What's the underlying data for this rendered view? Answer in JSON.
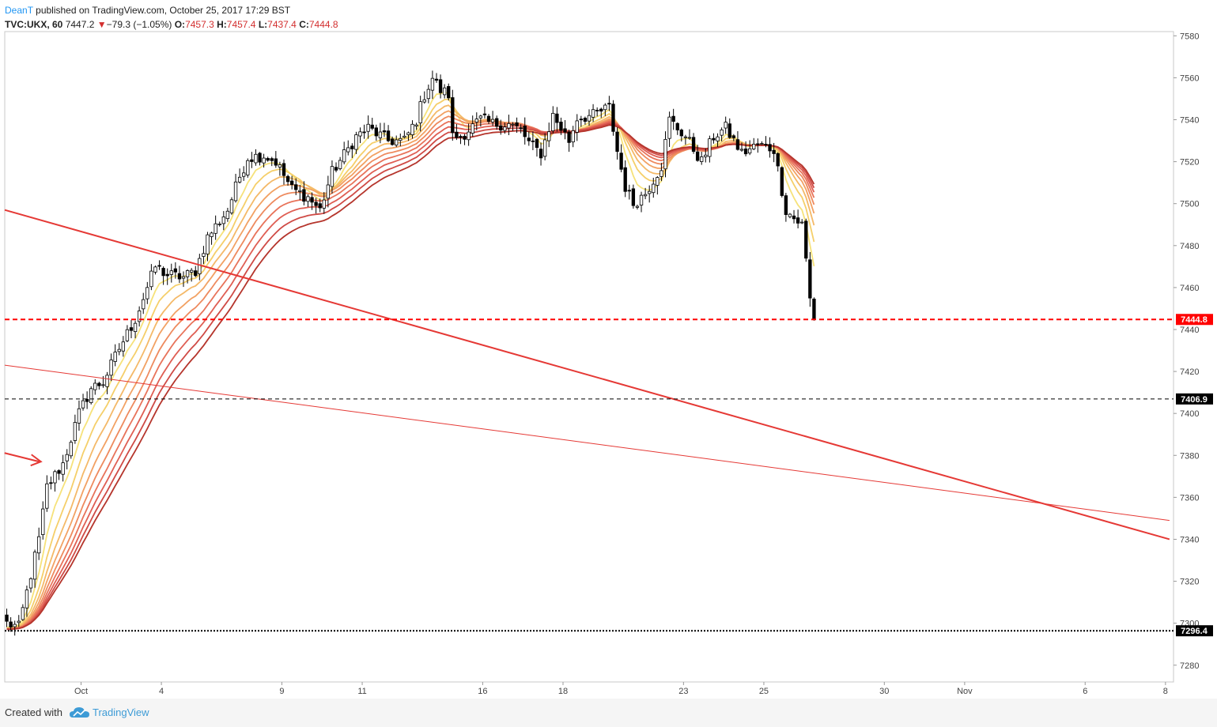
{
  "header": {
    "author": "DeanT",
    "published_text": " published on TradingView.com, October 25, 2017 17:29 BST",
    "symbol": "TVC:UKX, 60",
    "last": "7447.2",
    "change_arrow": "▼",
    "change": "−79.3 (−1.05%)",
    "o_label": "O:",
    "o_val": "7457.3",
    "h_label": "H:",
    "h_val": "7457.4",
    "l_label": "L:",
    "l_val": "7437.4",
    "c_label": "C:",
    "c_val": "7444.8"
  },
  "footer": {
    "created_with": "Created with",
    "brand": "TradingView"
  },
  "chart_data": {
    "type": "candlestick",
    "instrument": "TVC:UKX",
    "interval": "60",
    "y_axis": {
      "ticks": [
        7280,
        7300,
        7320,
        7340,
        7360,
        7380,
        7400,
        7420,
        7440,
        7460,
        7480,
        7500,
        7520,
        7540,
        7560,
        7580
      ],
      "ylim": [
        7272,
        7582
      ]
    },
    "x_axis": {
      "ticks": [
        "Oct",
        "4",
        "9",
        "11",
        "16",
        "18",
        "23",
        "25",
        "30",
        "Nov",
        "6",
        "8"
      ],
      "tick_bars": [
        19,
        39,
        69,
        89,
        119,
        139,
        169,
        189,
        219,
        239,
        269,
        289
      ],
      "bar_range": [
        0,
        291
      ]
    },
    "price_labels": [
      {
        "value": 7444.8,
        "text": "7444.8",
        "style": "red-dashed",
        "color": "#ff0000"
      },
      {
        "value": 7406.9,
        "text": "7406.9",
        "style": "black-dashed",
        "color": "#000000"
      },
      {
        "value": 7296.4,
        "text": "7296.4",
        "style": "black-dotted",
        "color": "#000000"
      }
    ],
    "trendlines": [
      {
        "from": [
          0,
          7497
        ],
        "to": [
          290,
          7340
        ],
        "color": "#e53935",
        "width": 2
      },
      {
        "from": [
          0,
          7423
        ],
        "to": [
          290,
          7349
        ],
        "color": "#e53935",
        "width": 1
      }
    ],
    "arrow_annotation": {
      "bar": 9,
      "value": 7377,
      "color": "#e53935"
    },
    "ma_ribbon": {
      "colors": [
        "#f6e27a",
        "#f5cf6a",
        "#f4b968",
        "#f2a163",
        "#ee8a5e",
        "#e8735a",
        "#df5e53",
        "#cf4a45",
        "#b5352c"
      ]
    },
    "candle_keypoints": [
      [
        0,
        7300
      ],
      [
        3,
        7298
      ],
      [
        8,
        7340
      ],
      [
        10,
        7365
      ],
      [
        14,
        7376
      ],
      [
        18,
        7400
      ],
      [
        21,
        7412
      ],
      [
        24,
        7415
      ],
      [
        28,
        7431
      ],
      [
        32,
        7445
      ],
      [
        35,
        7460
      ],
      [
        37,
        7470
      ],
      [
        40,
        7466
      ],
      [
        44,
        7465
      ],
      [
        47,
        7468
      ],
      [
        50,
        7484
      ],
      [
        55,
        7497
      ],
      [
        58,
        7513
      ],
      [
        60,
        7522
      ],
      [
        64,
        7523
      ],
      [
        67,
        7520
      ],
      [
        71,
        7507
      ],
      [
        75,
        7503
      ],
      [
        78,
        7497
      ],
      [
        81,
        7515
      ],
      [
        85,
        7526
      ],
      [
        87,
        7532
      ],
      [
        90,
        7536
      ],
      [
        95,
        7530
      ],
      [
        99,
        7530
      ],
      [
        102,
        7540
      ],
      [
        104,
        7552
      ],
      [
        106,
        7560
      ],
      [
        108,
        7554
      ],
      [
        110,
        7552
      ],
      [
        111,
        7532
      ],
      [
        113,
        7532
      ],
      [
        118,
        7540
      ],
      [
        121,
        7538
      ],
      [
        125,
        7538
      ],
      [
        128,
        7535
      ],
      [
        130,
        7529
      ],
      [
        133,
        7524
      ],
      [
        136,
        7542
      ],
      [
        140,
        7530
      ],
      [
        142,
        7541
      ],
      [
        146,
        7542
      ],
      [
        150,
        7546
      ],
      [
        152,
        7525
      ],
      [
        154,
        7508
      ],
      [
        156,
        7500
      ],
      [
        159,
        7505
      ],
      [
        163,
        7518
      ],
      [
        165,
        7540
      ],
      [
        169,
        7532
      ],
      [
        173,
        7520
      ],
      [
        176,
        7532
      ],
      [
        179,
        7536
      ],
      [
        183,
        7524
      ],
      [
        187,
        7528
      ],
      [
        191,
        7526
      ],
      [
        194,
        7497
      ],
      [
        196,
        7493
      ],
      [
        198,
        7490
      ],
      [
        199,
        7474
      ],
      [
        200,
        7455
      ],
      [
        201,
        7444.8
      ]
    ]
  }
}
